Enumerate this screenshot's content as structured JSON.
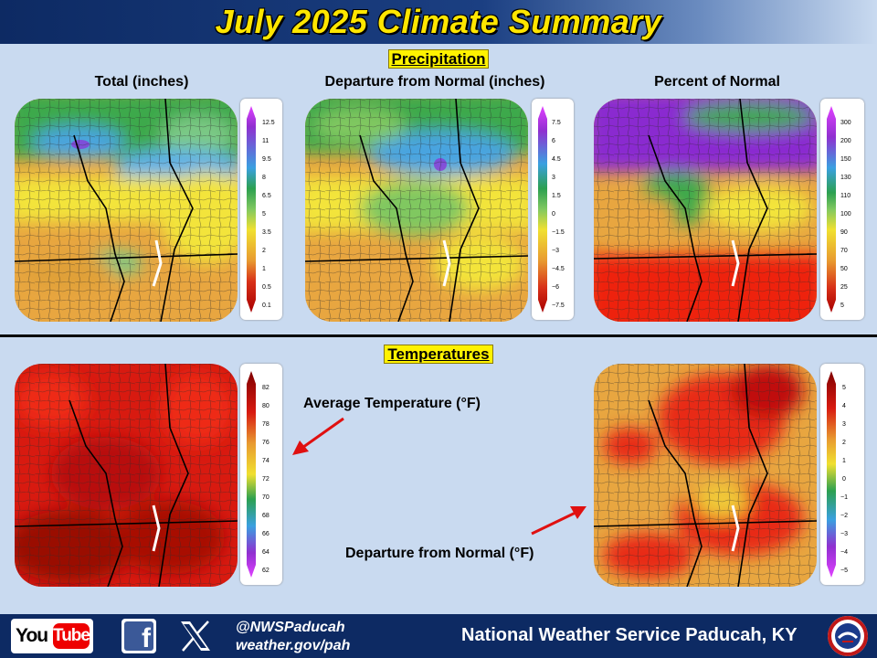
{
  "header": {
    "title": "July 2025 Climate Summary"
  },
  "precipitation": {
    "section_title": "Precipitation",
    "panels": [
      {
        "label": "Total (inches)",
        "legend_ticks": [
          "12.5",
          "11",
          "9.5",
          "8",
          "6.5",
          "5",
          "3.5",
          "2",
          "1",
          "0.5",
          "0.1"
        ]
      },
      {
        "label": "Departure  from Normal (inches)",
        "legend_ticks": [
          "7.5",
          "6",
          "4.5",
          "3",
          "1.5",
          "0",
          "−1.5",
          "−3",
          "−4.5",
          "−6",
          "−7.5"
        ]
      },
      {
        "label": "Percent of Normal",
        "legend_ticks": [
          "300",
          "200",
          "150",
          "130",
          "110",
          "100",
          "90",
          "70",
          "50",
          "25",
          "5"
        ]
      }
    ]
  },
  "temperatures": {
    "section_title": "Temperatures",
    "avg_label": "Average Temperature (°F)",
    "dep_label": "Departure  from Normal (°F)",
    "avg_legend_ticks": [
      "82",
      "80",
      "78",
      "76",
      "74",
      "72",
      "70",
      "68",
      "66",
      "64",
      "62"
    ],
    "dep_legend_ticks": [
      "5",
      "4",
      "3",
      "2",
      "1",
      "0",
      "−1",
      "−2",
      "−3",
      "−4",
      "−5"
    ]
  },
  "footer": {
    "youtube_you": "You",
    "youtube_tube": "Tube",
    "facebook_glyph": "f",
    "handle": "@NWSPaducah",
    "website": "weather.gov/pah",
    "office": "National Weather Service Paducah, KY"
  },
  "icons": [
    "youtube-logo",
    "facebook-icon",
    "x-icon",
    "nws-seal-icon"
  ]
}
